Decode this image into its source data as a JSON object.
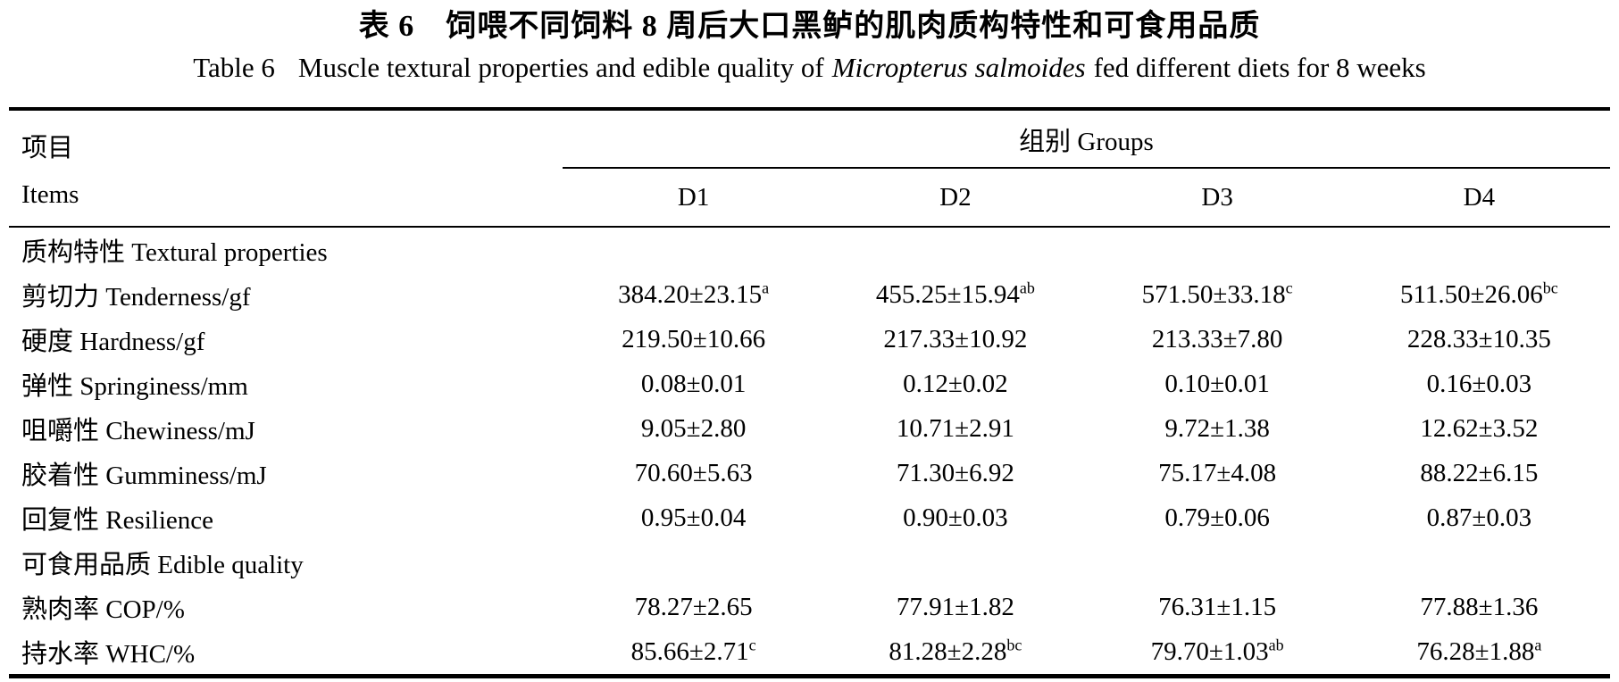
{
  "colors": {
    "text": "#000000",
    "background": "#ffffff",
    "rule": "#000000"
  },
  "title_zh": "表 6　饲喂不同饲料 8 周后大口黑鲈的肌肉质构特性和可食用品质",
  "title_en": {
    "label": "Table 6",
    "before_species": "Muscle textural properties and edible quality of",
    "species": "Micropterus salmoides",
    "after_species": "fed different diets for 8 weeks"
  },
  "header": {
    "items_zh": "项目",
    "items_en": "Items",
    "groups": "组别 Groups",
    "columns": [
      "D1",
      "D2",
      "D3",
      "D4"
    ]
  },
  "rows": [
    {
      "kind": "section",
      "label": "质构特性 Textural properties"
    },
    {
      "kind": "data",
      "label": "剪切力 Tenderness/gf",
      "values": [
        "384.20±23.15",
        "455.25±15.94",
        "571.50±33.18",
        "511.50±26.06"
      ],
      "sups": [
        "a",
        "ab",
        "c",
        "bc"
      ]
    },
    {
      "kind": "data",
      "label": "硬度 Hardness/gf",
      "values": [
        "219.50±10.66",
        "217.33±10.92",
        "213.33±7.80",
        "228.33±10.35"
      ],
      "sups": [
        "",
        "",
        "",
        ""
      ]
    },
    {
      "kind": "data",
      "label": "弹性 Springiness/mm",
      "values": [
        "0.08±0.01",
        "0.12±0.02",
        "0.10±0.01",
        "0.16±0.03"
      ],
      "sups": [
        "",
        "",
        "",
        ""
      ]
    },
    {
      "kind": "data",
      "label": "咀嚼性 Chewiness/mJ",
      "values": [
        "9.05±2.80",
        "10.71±2.91",
        "9.72±1.38",
        "12.62±3.52"
      ],
      "sups": [
        "",
        "",
        "",
        ""
      ]
    },
    {
      "kind": "data",
      "label": "胶着性 Gumminess/mJ",
      "values": [
        "70.60±5.63",
        "71.30±6.92",
        "75.17±4.08",
        "88.22±6.15"
      ],
      "sups": [
        "",
        "",
        "",
        ""
      ]
    },
    {
      "kind": "data",
      "label": "回复性 Resilience",
      "values": [
        "0.95±0.04",
        "0.90±0.03",
        "0.79±0.06",
        "0.87±0.03"
      ],
      "sups": [
        "",
        "",
        "",
        ""
      ]
    },
    {
      "kind": "section",
      "label": "可食用品质 Edible quality"
    },
    {
      "kind": "data",
      "label": "熟肉率 COP/%",
      "values": [
        "78.27±2.65",
        "77.91±1.82",
        "76.31±1.15",
        "77.88±1.36"
      ],
      "sups": [
        "",
        "",
        "",
        ""
      ]
    },
    {
      "kind": "data",
      "label": "持水率 WHC/%",
      "values": [
        "85.66±2.71",
        "81.28±2.28",
        "79.70±1.03",
        "76.28±1.88"
      ],
      "sups": [
        "c",
        "bc",
        "ab",
        "a"
      ]
    }
  ]
}
